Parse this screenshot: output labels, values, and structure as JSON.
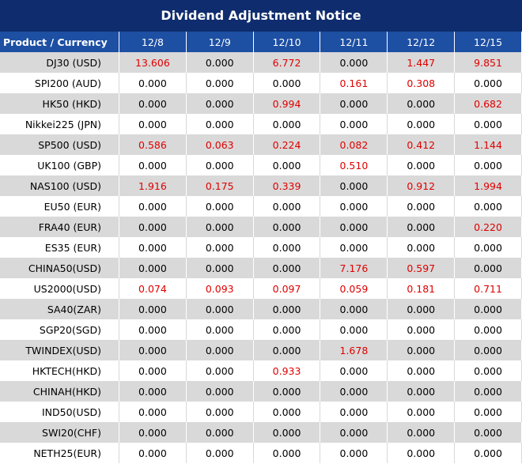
{
  "title": "Dividend Adjustment Notice",
  "table": {
    "header": [
      "Product / Currency",
      "12/8",
      "12/9",
      "12/10",
      "12/11",
      "12/12",
      "12/15"
    ],
    "rows": [
      [
        "DJ30 (USD)",
        "13.606",
        "0.000",
        "6.772",
        "0.000",
        "1.447",
        "9.851"
      ],
      [
        "SPI200 (AUD)",
        "0.000",
        "0.000",
        "0.000",
        "0.161",
        "0.308",
        "0.000"
      ],
      [
        "HK50 (HKD)",
        "0.000",
        "0.000",
        "0.994",
        "0.000",
        "0.000",
        "0.682"
      ],
      [
        "Nikkei225 (JPN)",
        "0.000",
        "0.000",
        "0.000",
        "0.000",
        "0.000",
        "0.000"
      ],
      [
        "SP500 (USD)",
        "0.586",
        "0.063",
        "0.224",
        "0.082",
        "0.412",
        "1.144"
      ],
      [
        "UK100 (GBP)",
        "0.000",
        "0.000",
        "0.000",
        "0.510",
        "0.000",
        "0.000"
      ],
      [
        "NAS100 (USD)",
        "1.916",
        "0.175",
        "0.339",
        "0.000",
        "0.912",
        "1.994"
      ],
      [
        "EU50 (EUR)",
        "0.000",
        "0.000",
        "0.000",
        "0.000",
        "0.000",
        "0.000"
      ],
      [
        "FRA40 (EUR)",
        "0.000",
        "0.000",
        "0.000",
        "0.000",
        "0.000",
        "0.220"
      ],
      [
        "ES35 (EUR)",
        "0.000",
        "0.000",
        "0.000",
        "0.000",
        "0.000",
        "0.000"
      ],
      [
        "CHINA50(USD)",
        "0.000",
        "0.000",
        "0.000",
        "7.176",
        "0.597",
        "0.000"
      ],
      [
        "US2000(USD)",
        "0.074",
        "0.093",
        "0.097",
        "0.059",
        "0.181",
        "0.711"
      ],
      [
        "SA40(ZAR)",
        "0.000",
        "0.000",
        "0.000",
        "0.000",
        "0.000",
        "0.000"
      ],
      [
        "SGP20(SGD)",
        "0.000",
        "0.000",
        "0.000",
        "0.000",
        "0.000",
        "0.000"
      ],
      [
        "TWINDEX(USD)",
        "0.000",
        "0.000",
        "0.000",
        "1.678",
        "0.000",
        "0.000"
      ],
      [
        "HKTECH(HKD)",
        "0.000",
        "0.000",
        "0.933",
        "0.000",
        "0.000",
        "0.000"
      ],
      [
        "CHINAH(HKD)",
        "0.000",
        "0.000",
        "0.000",
        "0.000",
        "0.000",
        "0.000"
      ],
      [
        "IND50(USD)",
        "0.000",
        "0.000",
        "0.000",
        "0.000",
        "0.000",
        "0.000"
      ],
      [
        "SWI20(CHF)",
        "0.000",
        "0.000",
        "0.000",
        "0.000",
        "0.000",
        "0.000"
      ],
      [
        "NETH25(EUR)",
        "0.000",
        "0.000",
        "0.000",
        "0.000",
        "0.000",
        "0.000"
      ]
    ]
  }
}
